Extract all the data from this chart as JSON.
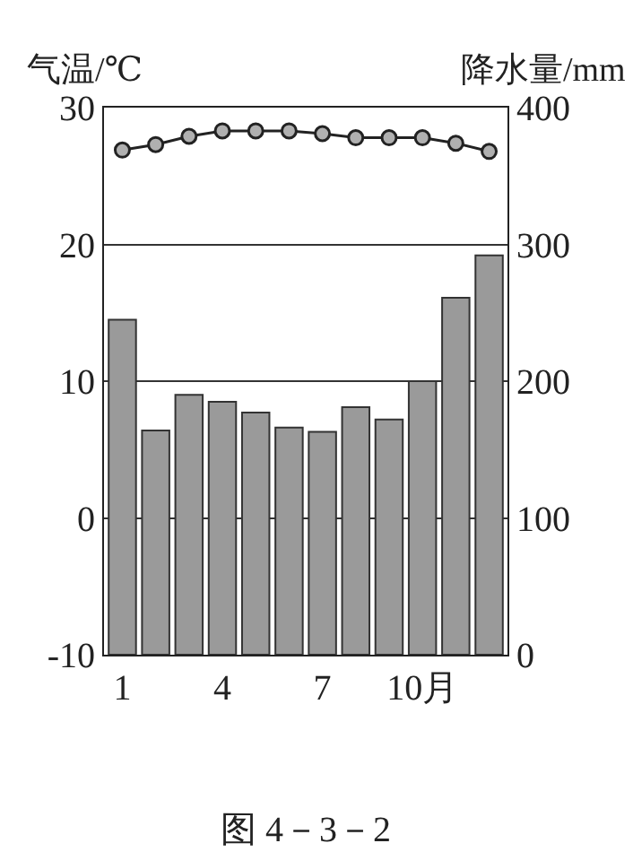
{
  "chart_data": {
    "type": "bar",
    "ylabel": "气温/℃",
    "y2label": "降水量/mm",
    "categories": [
      "1",
      null,
      null,
      "4",
      null,
      null,
      "7",
      null,
      null,
      "10月",
      null,
      null
    ],
    "series": [
      {
        "axis": "y2",
        "color": "#9a9a9a",
        "values": [
          245,
          164,
          190,
          185,
          177,
          166,
          163,
          181,
          172,
          200,
          261,
          292
        ]
      },
      {
        "type": "line",
        "axis": "y",
        "color": "#222222",
        "marker": "circle",
        "values": [
          26.9,
          27.3,
          27.9,
          28.3,
          28.3,
          28.3,
          28.1,
          27.8,
          27.8,
          27.8,
          27.4,
          26.8
        ]
      }
    ],
    "ylim": [
      -10,
      30
    ],
    "yticks": [
      -10,
      0,
      10,
      20,
      30
    ],
    "y2lim": [
      0,
      400
    ],
    "y2ticks": [
      0,
      100,
      200,
      300,
      400
    ],
    "grid": "y",
    "annotations": [
      "图 4－3－2"
    ]
  }
}
